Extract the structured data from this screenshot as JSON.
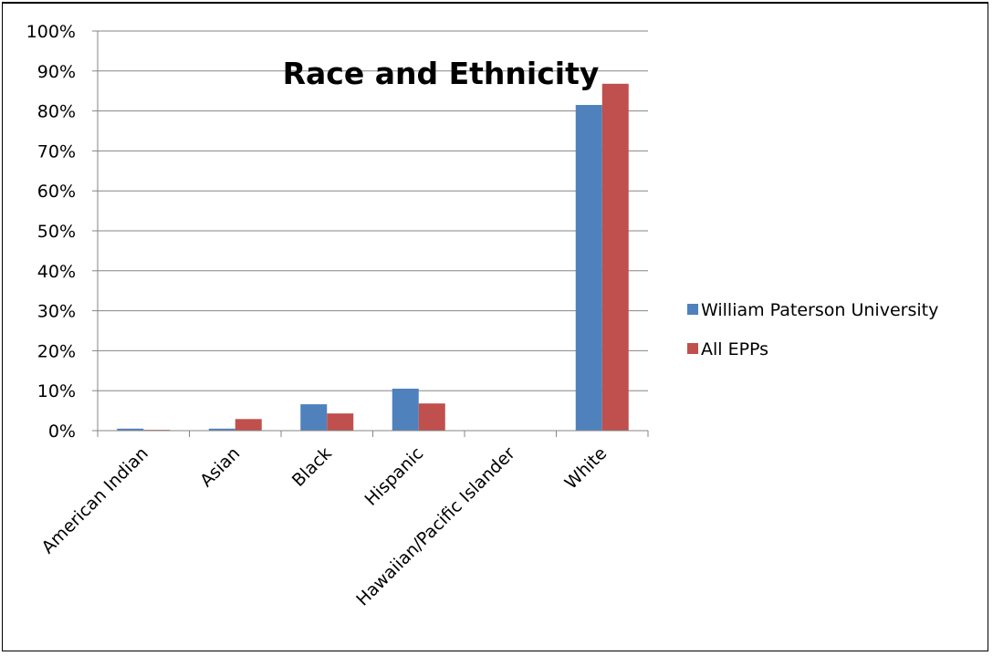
{
  "chart_data": {
    "type": "bar",
    "title": "Race and Ethnicity",
    "xlabel": "",
    "ylabel": "",
    "categories": [
      "American Indian",
      "Asian",
      "Black",
      "Hispanic",
      "Hawaiian/Pacific Islander",
      "White"
    ],
    "series": [
      {
        "name": "William Paterson University",
        "color": "#4F81BD",
        "values": [
          0.5,
          0.5,
          6.6,
          10.5,
          0.0,
          81.5
        ]
      },
      {
        "name": "All EPPs",
        "color": "#C0504D",
        "values": [
          0.2,
          2.9,
          4.3,
          6.8,
          0.1,
          86.8
        ]
      }
    ],
    "ylim": [
      0,
      100
    ],
    "yticks": [
      0,
      10,
      20,
      30,
      40,
      50,
      60,
      70,
      80,
      90,
      100
    ],
    "ytick_suffix": "%",
    "grid": true,
    "legend_position": "right"
  }
}
